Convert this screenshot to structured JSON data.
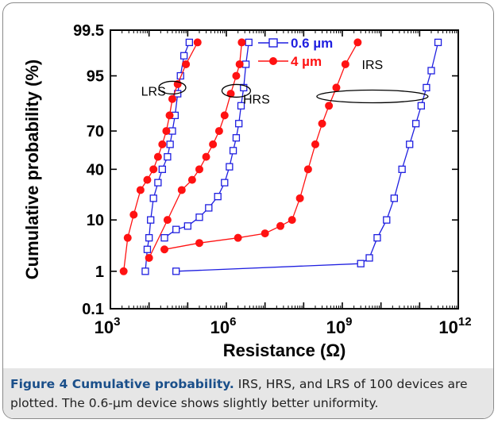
{
  "caption": {
    "label": "Figure 4 Cumulative probability.",
    "text": " IRS, HRS, and LRS of 100 devices are plotted. The 0.6-µm device shows slightly better uniformity."
  },
  "colors": {
    "blue": "#1f1fe0",
    "red": "#ff1212",
    "frame": "#000000",
    "caption_label": "#1a4f8a",
    "caption_bg": "#e6e6e6"
  },
  "chart_data": {
    "type": "scatter",
    "xlabel": "Resistance (Ω)",
    "ylabel": "Cumulative probability (%)",
    "x_scale": "log",
    "y_scale": "probability",
    "xlim": [
      1000,
      1000000000000
    ],
    "ylim": [
      0.1,
      99.5
    ],
    "x_ticks": [
      {
        "value": 1000,
        "base": "10",
        "exp": "3"
      },
      {
        "value": 1000000,
        "base": "10",
        "exp": "6"
      },
      {
        "value": 1000000000,
        "base": "10",
        "exp": "9"
      },
      {
        "value": 1000000000000,
        "base": "10",
        "exp": "12"
      }
    ],
    "y_ticks": [
      {
        "value": 0.1,
        "label": "0.1"
      },
      {
        "value": 1,
        "label": "1"
      },
      {
        "value": 10,
        "label": "10"
      },
      {
        "value": 40,
        "label": "40"
      },
      {
        "value": 70,
        "label": "70"
      },
      {
        "value": 95,
        "label": "95"
      },
      {
        "value": 99.5,
        "label": "99.5"
      }
    ],
    "legend": {
      "position": "top-center"
    },
    "series": [
      {
        "name": "0.6 µm",
        "color": "#1f1fe0",
        "marker": "open-square",
        "groups": [
          {
            "state": "LRS",
            "points": [
              [
                8000,
                1
              ],
              [
                9000,
                3
              ],
              [
                10000,
                5
              ],
              [
                11000,
                10
              ],
              [
                13000,
                20
              ],
              [
                17000,
                30
              ],
              [
                22000,
                40
              ],
              [
                30000,
                50
              ],
              [
                35000,
                60
              ],
              [
                40000,
                70
              ],
              [
                47000,
                80
              ],
              [
                55000,
                90
              ],
              [
                65000,
                95
              ],
              [
                80000,
                98
              ],
              [
                110000,
                99
              ]
            ]
          },
          {
            "state": "HRS",
            "points": [
              [
                25000,
                5
              ],
              [
                50000,
                7
              ],
              [
                100000,
                8
              ],
              [
                200000,
                11
              ],
              [
                350000,
                15
              ],
              [
                600000,
                21
              ],
              [
                900000,
                30
              ],
              [
                1200000,
                42
              ],
              [
                1500000,
                55
              ],
              [
                1800000,
                65
              ],
              [
                2100000,
                75
              ],
              [
                2400000,
                85
              ],
              [
                2800000,
                92
              ],
              [
                3200000,
                97
              ],
              [
                3800000,
                99
              ]
            ]
          },
          {
            "state": "IRS",
            "points": [
              [
                50000,
                1
              ],
              [
                3000000000,
                1.5
              ],
              [
                5000000000,
                2
              ],
              [
                8000000000,
                5
              ],
              [
                14000000000,
                10
              ],
              [
                22000000000,
                20
              ],
              [
                35000000000,
                40
              ],
              [
                55000000000,
                60
              ],
              [
                80000000000,
                75
              ],
              [
                110000000000,
                85
              ],
              [
                150000000000,
                92
              ],
              [
                200000000000,
                96
              ],
              [
                300000000000,
                99
              ]
            ]
          }
        ]
      },
      {
        "name": "4 µm",
        "color": "#ff1212",
        "marker": "filled-circle",
        "groups": [
          {
            "state": "LRS",
            "points": [
              [
                2200,
                1
              ],
              [
                2800,
                5
              ],
              [
                4000,
                12
              ],
              [
                6000,
                25
              ],
              [
                9000,
                32
              ],
              [
                13000,
                40
              ],
              [
                17000,
                50
              ],
              [
                22000,
                60
              ],
              [
                28000,
                70
              ],
              [
                34000,
                80
              ],
              [
                40000,
                88
              ],
              [
                55000,
                93
              ],
              [
                90000,
                97
              ],
              [
                180000,
                99
              ]
            ]
          },
          {
            "state": "HRS",
            "points": [
              [
                10000,
                2
              ],
              [
                30000,
                10
              ],
              [
                70000,
                25
              ],
              [
                130000,
                32
              ],
              [
                200000,
                40
              ],
              [
                300000,
                50
              ],
              [
                450000,
                60
              ],
              [
                650000,
                70
              ],
              [
                900000,
                80
              ],
              [
                1300000,
                90
              ],
              [
                1800000,
                95
              ],
              [
                2200000,
                97
              ],
              [
                2500000,
                99
              ]
            ]
          },
          {
            "state": "IRS",
            "points": [
              [
                25000,
                3
              ],
              [
                200000,
                4
              ],
              [
                2000000,
                5
              ],
              [
                10000000,
                6
              ],
              [
                25000000,
                8
              ],
              [
                50000000,
                10
              ],
              [
                80000000,
                20
              ],
              [
                130000000,
                40
              ],
              [
                200000000,
                60
              ],
              [
                300000000,
                75
              ],
              [
                450000000,
                85
              ],
              [
                700000000,
                92
              ],
              [
                1200000000,
                97
              ],
              [
                2500000000,
                99
              ]
            ]
          }
        ]
      }
    ],
    "annotations": [
      {
        "text": "LRS",
        "x": 13000,
        "y": 91
      },
      {
        "text": "HRS",
        "x": 6000000,
        "y": 88
      },
      {
        "text": "IRS",
        "x": 6000000000,
        "y": 97
      }
    ]
  }
}
